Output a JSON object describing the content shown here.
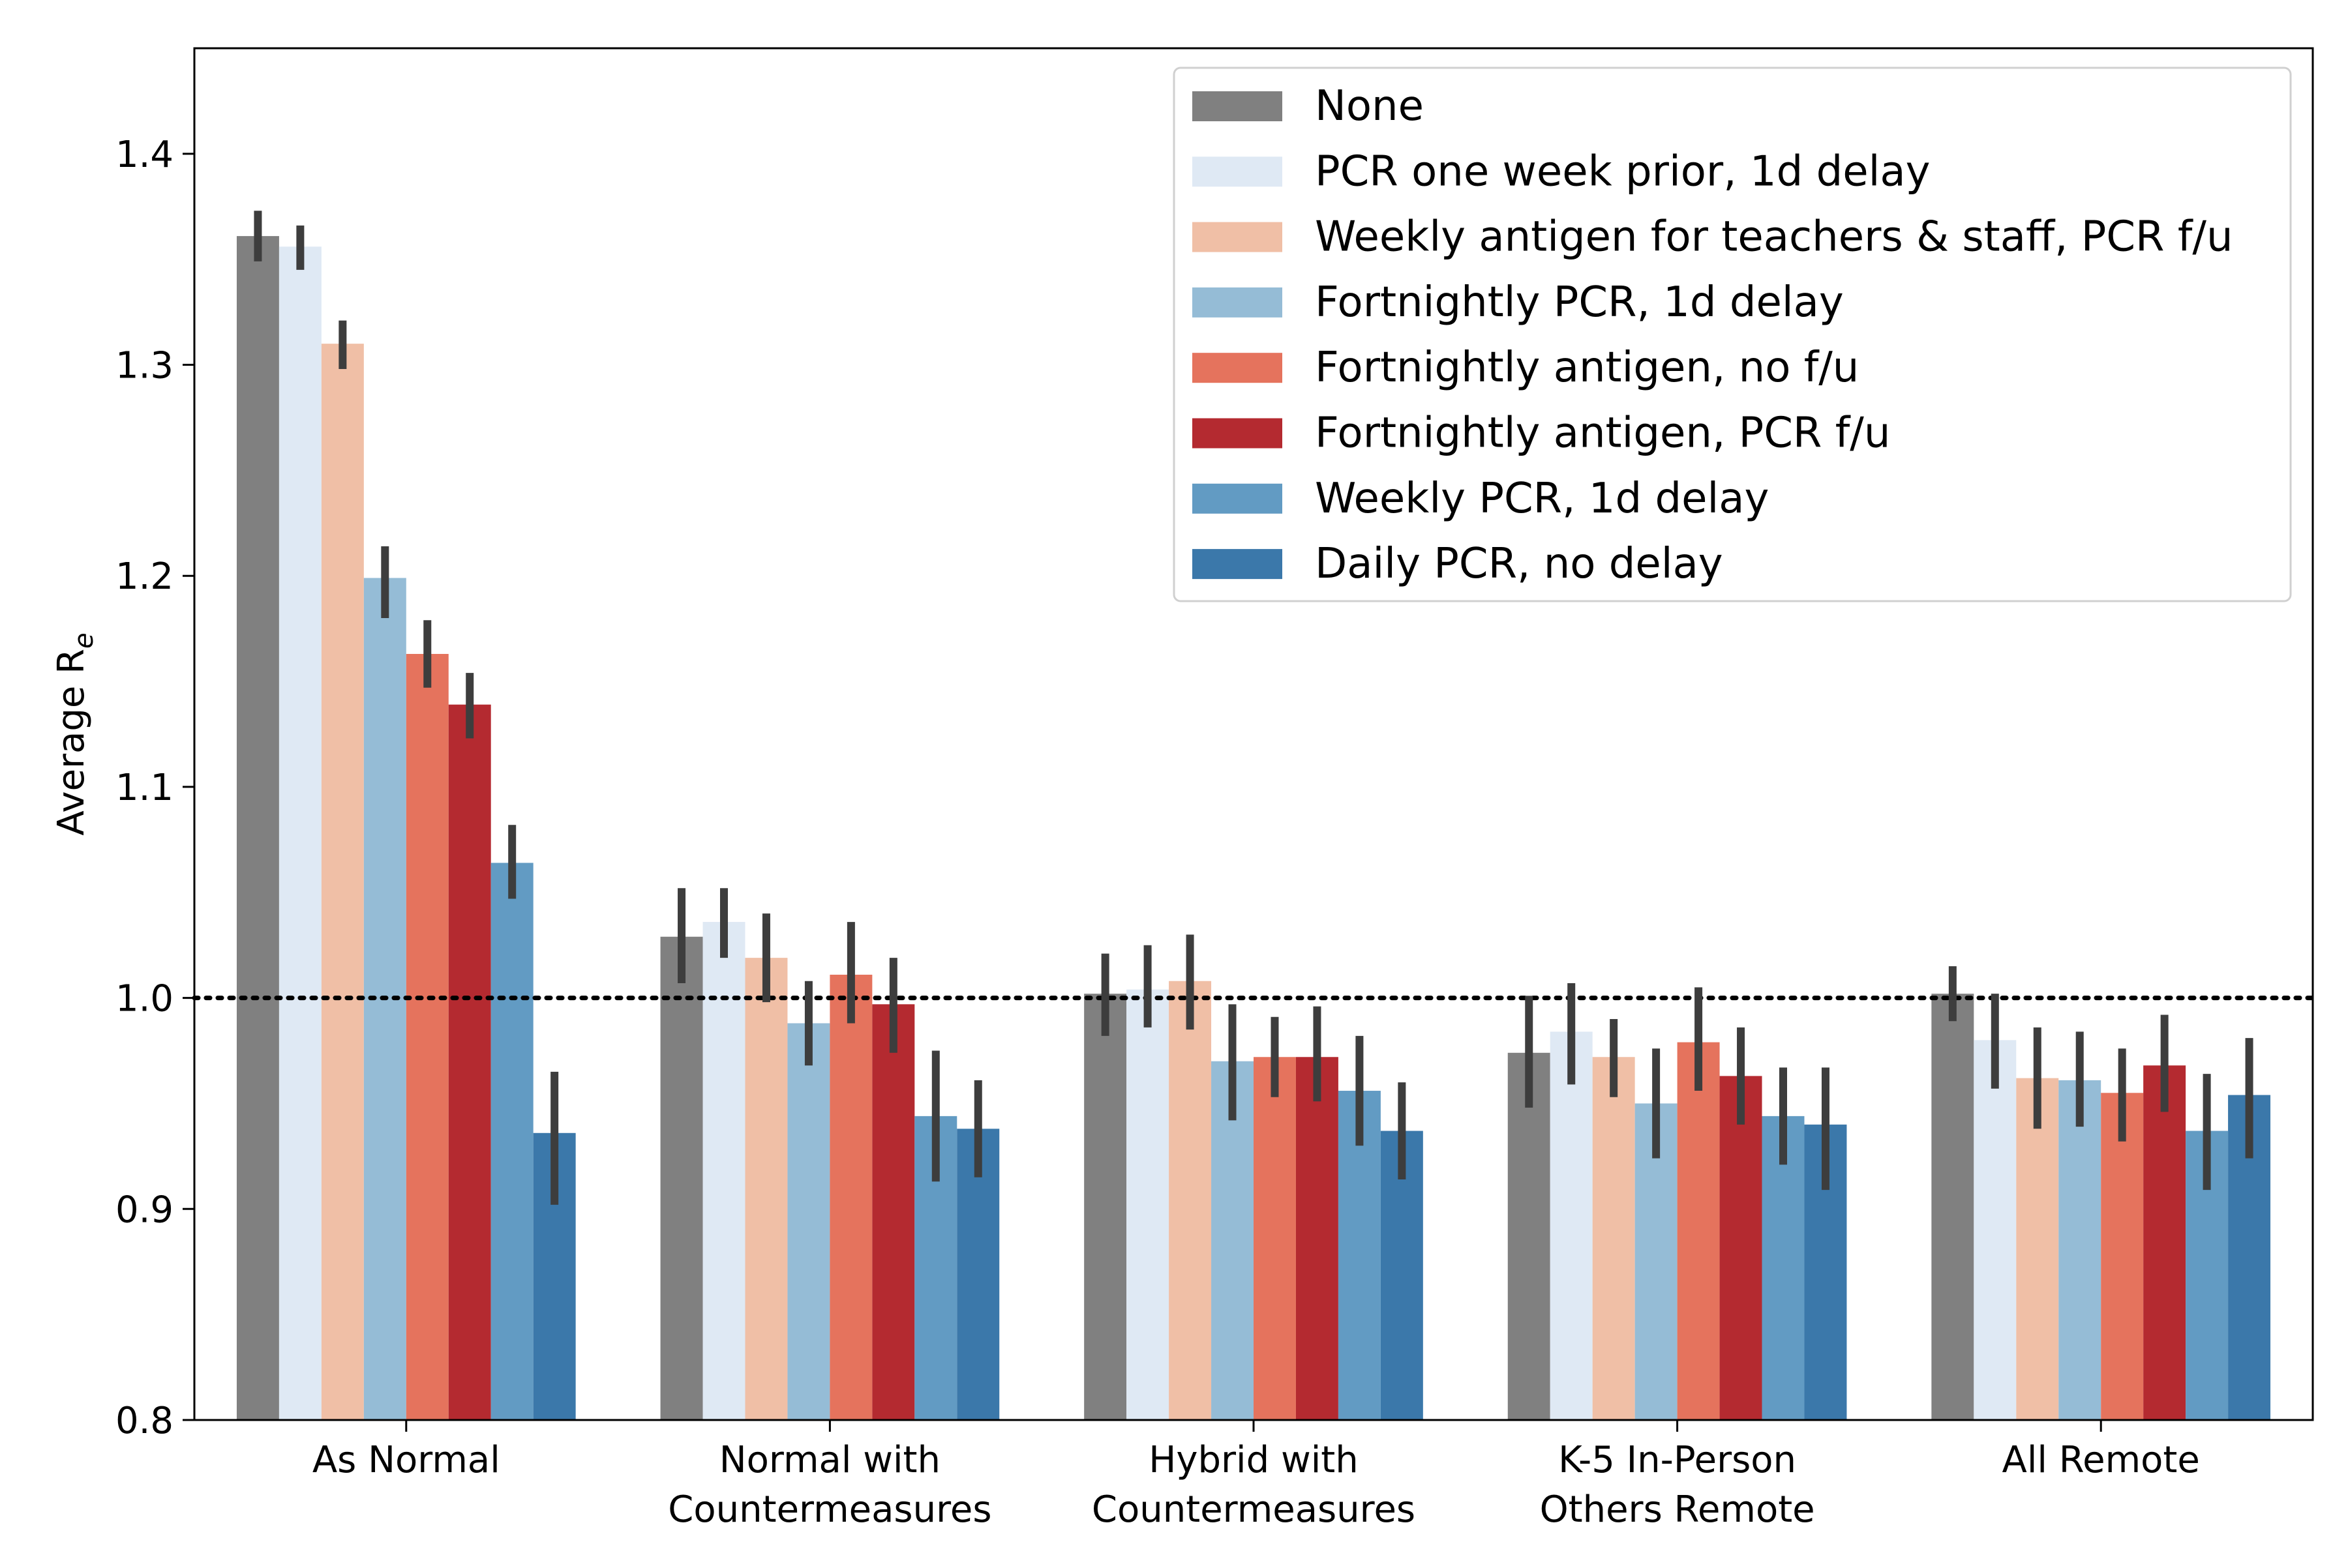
{
  "chart_data": {
    "type": "bar",
    "xlabel": "",
    "ylabel": "Average R",
    "ylabel_subscript": "e",
    "ylim": [
      0.8,
      1.45
    ],
    "yticks": [
      0.8,
      0.9,
      1.0,
      1.1,
      1.2,
      1.3,
      1.4
    ],
    "ytick_labels": [
      "0.8",
      "0.9",
      "1.0",
      "1.1",
      "1.2",
      "1.3",
      "1.4"
    ],
    "categories": [
      [
        "As Normal"
      ],
      [
        "Normal with",
        "Countermeasures"
      ],
      [
        "Hybrid with",
        "Countermeasures"
      ],
      [
        "K-5 In-Person",
        "Others Remote"
      ],
      [
        "All Remote"
      ]
    ],
    "reference_line": {
      "y": 1.0,
      "style": "dotted"
    },
    "legend_position": "top-right",
    "error_bar_color": "#3d3d3d",
    "series": [
      {
        "name": "None",
        "color": "#808080",
        "values": [
          1.361,
          1.029,
          1.002,
          0.974,
          1.002
        ],
        "err_low": [
          1.349,
          1.007,
          0.982,
          0.948,
          0.989
        ],
        "err_high": [
          1.373,
          1.052,
          1.021,
          1.001,
          1.015
        ]
      },
      {
        "name": "PCR one week prior, 1d delay",
        "color": "#dfe9f4",
        "values": [
          1.356,
          1.036,
          1.004,
          0.984,
          0.98
        ],
        "err_low": [
          1.345,
          1.019,
          0.986,
          0.959,
          0.957
        ],
        "err_high": [
          1.366,
          1.052,
          1.025,
          1.007,
          1.002
        ]
      },
      {
        "name": "Weekly antigen for teachers & staff, PCR f/u",
        "color": "#f0bfa6",
        "values": [
          1.31,
          1.019,
          1.008,
          0.972,
          0.962
        ],
        "err_low": [
          1.298,
          0.998,
          0.985,
          0.953,
          0.938
        ],
        "err_high": [
          1.321,
          1.04,
          1.03,
          0.99,
          0.986
        ]
      },
      {
        "name": "Fortnightly PCR, 1d delay",
        "color": "#95bcd6",
        "values": [
          1.199,
          0.988,
          0.97,
          0.95,
          0.961
        ],
        "err_low": [
          1.18,
          0.968,
          0.942,
          0.924,
          0.939
        ],
        "err_high": [
          1.214,
          1.008,
          0.997,
          0.976,
          0.984
        ]
      },
      {
        "name": "Fortnightly antigen, no f/u",
        "color": "#e5735d",
        "values": [
          1.163,
          1.011,
          0.972,
          0.979,
          0.955
        ],
        "err_low": [
          1.147,
          0.988,
          0.953,
          0.956,
          0.932
        ],
        "err_high": [
          1.179,
          1.036,
          0.991,
          1.005,
          0.976
        ]
      },
      {
        "name": "Fortnightly antigen, PCR f/u",
        "color": "#b42a30",
        "values": [
          1.139,
          0.997,
          0.972,
          0.963,
          0.968
        ],
        "err_low": [
          1.123,
          0.974,
          0.951,
          0.94,
          0.946
        ],
        "err_high": [
          1.154,
          1.019,
          0.996,
          0.986,
          0.992
        ]
      },
      {
        "name": "Weekly PCR, 1d delay",
        "color": "#629bc3",
        "values": [
          1.064,
          0.944,
          0.956,
          0.944,
          0.937
        ],
        "err_low": [
          1.047,
          0.913,
          0.93,
          0.921,
          0.909
        ],
        "err_high": [
          1.082,
          0.975,
          0.982,
          0.967,
          0.964
        ]
      },
      {
        "name": "Daily PCR, no delay",
        "color": "#3b78aa",
        "values": [
          0.936,
          0.938,
          0.937,
          0.94,
          0.954
        ],
        "err_low": [
          0.902,
          0.915,
          0.914,
          0.909,
          0.924
        ],
        "err_high": [
          0.965,
          0.961,
          0.96,
          0.967,
          0.981
        ]
      }
    ]
  }
}
